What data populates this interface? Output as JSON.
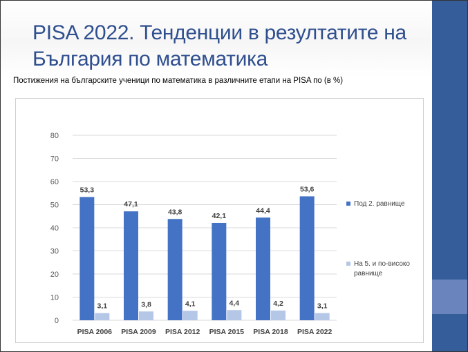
{
  "slide": {
    "title": "PISA 2022. Тенденции в резултатите на България по математика",
    "subtitle": "Постижения на българските ученици по математика в различните етапи на PISA  по (в %)"
  },
  "colors": {
    "title": "#2f4f8f",
    "sidebar": "#355d99",
    "sidebar_block": "#6a84bd",
    "series1": "#4472c4",
    "series2": "#b4c7e7",
    "grid": "#d9d9d9"
  },
  "chart_data": {
    "type": "bar",
    "categories": [
      "PISA 2006",
      "PISA 2009",
      "PISA 2012",
      "PISA 2015",
      "PISA 2018",
      "PISA 2022"
    ],
    "series": [
      {
        "name": "Под 2. равнище",
        "values": [
          53.3,
          47.1,
          43.8,
          42.1,
          44.4,
          53.6
        ],
        "labels": [
          "53,3",
          "47,1",
          "43,8",
          "42,1",
          "44,4",
          "53,6"
        ]
      },
      {
        "name": "На 5. и по-високо равнище",
        "values": [
          3.1,
          3.8,
          4.1,
          4.4,
          4.2,
          3.1
        ],
        "labels": [
          "3,1",
          "3,8",
          "4,1",
          "4,4",
          "4,2",
          "3,1"
        ]
      }
    ],
    "yticks": [
      "0",
      "10",
      "20",
      "30",
      "40",
      "50",
      "60",
      "70",
      "80"
    ],
    "ylim": [
      0,
      80
    ],
    "grid": true,
    "legend_position": "right"
  }
}
